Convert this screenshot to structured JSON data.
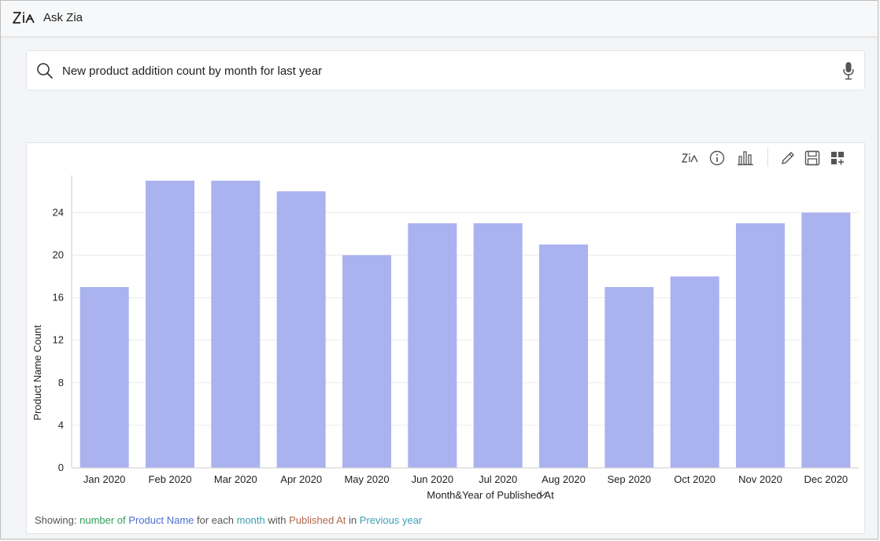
{
  "app": {
    "title": "Ask Zia"
  },
  "search": {
    "value": "New product addition count by month for last year"
  },
  "toolbar": {
    "icons": [
      "zia-icon",
      "info-icon",
      "chart-type-icon",
      "edit-icon",
      "save-icon",
      "add-to-dashboard-icon"
    ]
  },
  "chart_data": {
    "type": "bar",
    "categories": [
      "Jan 2020",
      "Feb 2020",
      "Mar 2020",
      "Apr 2020",
      "May 2020",
      "Jun 2020",
      "Jul 2020",
      "Aug 2020",
      "Sep 2020",
      "Oct 2020",
      "Nov 2020",
      "Dec 2020"
    ],
    "values": [
      17,
      27,
      27,
      26,
      20,
      23,
      23,
      21,
      17,
      18,
      23,
      24
    ],
    "xlabel": "Month&Year of Published At",
    "ylabel": "Product Name Count",
    "ylim": [
      0,
      27.5
    ],
    "yticks": [
      0,
      4,
      8,
      12,
      16,
      20,
      24
    ],
    "grid": true,
    "bar_color": "#aab2f0"
  },
  "showing": {
    "prefix": "Showing:",
    "part1": "number of",
    "part2": "Product Name",
    "part3": "for each",
    "part4": "month",
    "part5": "with",
    "part6": "Published At",
    "part7": "in",
    "part8": "Previous year"
  },
  "colors": {
    "green": "#2e9e57",
    "blue": "#4a6fd1",
    "teal": "#3aa0b5",
    "brown": "#b0684f"
  }
}
